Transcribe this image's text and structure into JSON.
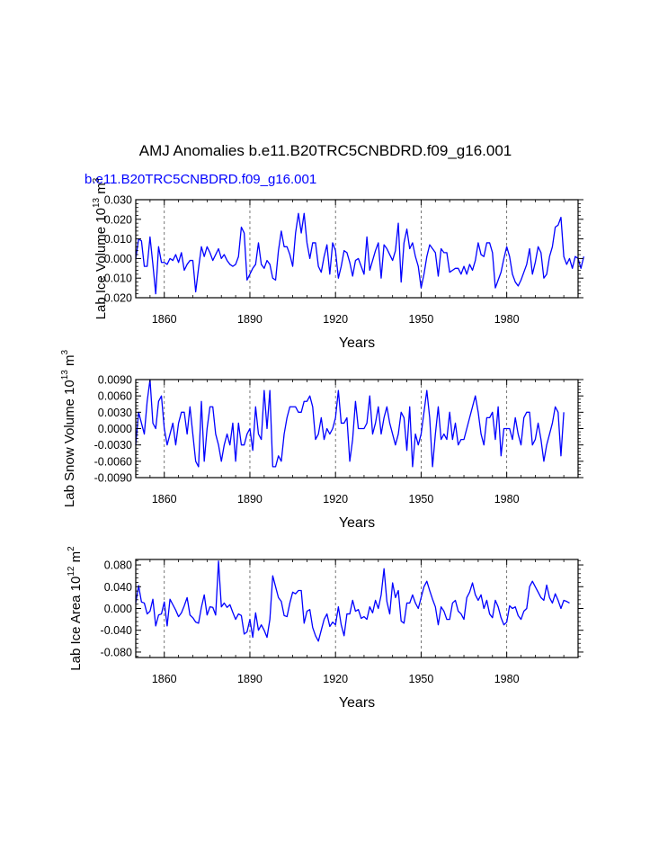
{
  "colors": {
    "series": "#0000ff",
    "axis": "#000000",
    "grid": "#555555"
  },
  "figure": {
    "title": "AMJ Anomalies b.e11.B20TRC5CNBDRD.f09_g16.001",
    "case_label": "b.e11.B20TRC5CNBDRD.f09_g16.001"
  },
  "chart_data": [
    {
      "type": "line",
      "name": "lab-ice-volume",
      "title": "AMJ Anomalies b.e11.B20TRC5CNBDRD.f09_g16.001",
      "series_label": "b.e11.B20TRC5CNBDRD.f09_g16.001",
      "ylabel": {
        "main": "Lab Ice Volume 10",
        "sup1": "13",
        "mid": " m",
        "sup2": "3"
      },
      "xlabel": "Years",
      "xlim": [
        1850,
        2005
      ],
      "ylim": [
        -0.02,
        0.03
      ],
      "x_ticks": [
        1860,
        1890,
        1920,
        1950,
        1980
      ],
      "x_tick_labels": [
        "1860",
        "1890",
        "1920",
        "1950",
        "1980"
      ],
      "y_ticks": [
        -0.02,
        -0.01,
        0.0,
        0.01,
        0.02,
        0.03
      ],
      "y_tick_labels": [
        "-0.020",
        "-0.010",
        "0.000",
        "0.010",
        "0.020",
        "0.030"
      ],
      "grid": "vertical dashed at x ticks",
      "x_start": 1850,
      "values": [
        0.0,
        0.01,
        0.009,
        -0.004,
        -0.004,
        0.011,
        -0.003,
        -0.018,
        0.006,
        -0.002,
        -0.002,
        -0.003,
        0.0,
        -0.001,
        0.002,
        -0.002,
        0.003,
        -0.006,
        -0.003,
        -0.001,
        -0.001,
        -0.017,
        -0.005,
        0.006,
        0.001,
        0.006,
        0.003,
        -0.001,
        0.002,
        0.005,
        0.0,
        0.002,
        -0.001,
        -0.003,
        -0.004,
        -0.003,
        0.001,
        0.016,
        0.013,
        -0.011,
        -0.008,
        -0.005,
        -0.003,
        0.008,
        -0.003,
        -0.005,
        -0.001,
        -0.003,
        -0.01,
        -0.011,
        0.004,
        0.014,
        0.006,
        0.006,
        0.002,
        -0.004,
        0.013,
        0.023,
        0.013,
        0.023,
        0.008,
        0.0,
        0.008,
        0.008,
        -0.004,
        -0.007,
        0.001,
        0.007,
        -0.008,
        0.008,
        0.004,
        -0.01,
        -0.004,
        0.004,
        0.003,
        -0.002,
        -0.009,
        -0.001,
        0.0,
        -0.004,
        -0.008,
        0.011,
        -0.006,
        -0.001,
        0.004,
        0.008,
        -0.01,
        0.007,
        0.005,
        0.002,
        -0.001,
        0.004,
        0.018,
        -0.012,
        0.008,
        0.015,
        0.005,
        0.008,
        0.001,
        -0.004,
        -0.015,
        -0.008,
        0.001,
        0.007,
        0.005,
        0.003,
        -0.009,
        0.005,
        0.003,
        0.003,
        -0.007,
        -0.006,
        -0.005,
        -0.005,
        -0.008,
        -0.004,
        -0.008,
        -0.003,
        -0.006,
        -0.001,
        0.008,
        0.002,
        0.001,
        0.008,
        0.008,
        0.003,
        -0.015,
        -0.011,
        -0.007,
        0.0,
        0.006,
        0.001,
        -0.008,
        -0.012,
        -0.014,
        -0.011,
        -0.007,
        -0.003,
        0.005,
        -0.008,
        -0.002,
        0.006,
        0.003,
        -0.01,
        -0.008,
        0.001,
        0.006,
        0.016,
        0.017,
        0.021,
        0.001,
        -0.003,
        0.0,
        -0.005,
        0.001,
        0.0,
        -0.005,
        0.001
      ]
    },
    {
      "type": "line",
      "name": "lab-snow-volume",
      "ylabel": {
        "main": "Lab Snow Volume 10",
        "sup1": "13",
        "mid": " m",
        "sup2": "3"
      },
      "xlabel": "Years",
      "xlim": [
        1850,
        2005
      ],
      "ylim": [
        -0.009,
        0.009
      ],
      "x_ticks": [
        1860,
        1890,
        1920,
        1950,
        1980
      ],
      "x_tick_labels": [
        "1860",
        "1890",
        "1920",
        "1950",
        "1980"
      ],
      "y_ticks": [
        -0.009,
        -0.006,
        -0.003,
        0.0,
        0.003,
        0.006,
        0.009
      ],
      "y_tick_labels": [
        "-0.0090",
        "-0.0060",
        "-0.0030",
        "0.0000",
        "0.0030",
        "0.0060",
        "0.0090"
      ],
      "grid": "vertical dashed at x ticks",
      "x_start": 1850,
      "values": [
        -0.003,
        0.003,
        0.001,
        -0.001,
        0.005,
        0.009,
        0.001,
        0.0,
        0.005,
        0.006,
        0.0,
        -0.003,
        -0.001,
        0.001,
        -0.003,
        0.001,
        0.003,
        0.003,
        -0.001,
        0.004,
        -0.001,
        -0.006,
        -0.007,
        0.005,
        -0.006,
        0.0,
        0.004,
        0.004,
        -0.001,
        -0.003,
        -0.006,
        -0.003,
        -0.001,
        -0.003,
        0.001,
        -0.006,
        0.001,
        -0.003,
        -0.003,
        -0.001,
        0.0,
        -0.004,
        0.004,
        -0.001,
        -0.002,
        0.007,
        0.0,
        0.007,
        -0.007,
        -0.007,
        -0.005,
        -0.006,
        -0.001,
        0.002,
        0.004,
        0.004,
        0.004,
        0.003,
        0.003,
        0.005,
        0.005,
        0.006,
        0.004,
        -0.002,
        -0.001,
        0.002,
        -0.002,
        0.0,
        -0.001,
        0.0,
        0.002,
        0.007,
        0.001,
        0.001,
        0.002,
        -0.006,
        -0.002,
        0.005,
        0.0,
        0.0,
        0.0,
        0.001,
        0.006,
        -0.001,
        0.001,
        0.004,
        -0.001,
        0.002,
        0.004,
        0.001,
        -0.001,
        -0.003,
        -0.001,
        0.003,
        0.002,
        -0.004,
        0.004,
        -0.007,
        -0.001,
        -0.003,
        -0.001,
        0.003,
        0.007,
        0.002,
        -0.007,
        -0.001,
        0.004,
        -0.002,
        -0.001,
        -0.002,
        0.003,
        -0.002,
        0.001,
        -0.003,
        -0.002,
        -0.002,
        0.0,
        0.002,
        0.004,
        0.006,
        0.003,
        -0.001,
        -0.003,
        0.002,
        0.002,
        0.003,
        -0.002,
        0.004,
        -0.005,
        0.0,
        0.0,
        0.0,
        -0.002,
        0.002,
        -0.001,
        -0.003,
        0.002,
        0.003,
        0.003,
        -0.003,
        -0.002,
        0.001,
        -0.002,
        -0.006,
        -0.003,
        -0.001,
        0.001,
        0.004,
        0.003,
        -0.005,
        0.003
      ]
    },
    {
      "type": "line",
      "name": "lab-ice-area",
      "ylabel": {
        "main": "Lab Ice Area 10",
        "sup1": "12",
        "mid": " m",
        "sup2": "2"
      },
      "xlabel": "Years",
      "xlim": [
        1850,
        2005
      ],
      "ylim": [
        -0.09,
        0.09
      ],
      "x_ticks": [
        1860,
        1890,
        1920,
        1950,
        1980
      ],
      "x_tick_labels": [
        "1860",
        "1890",
        "1920",
        "1950",
        "1980"
      ],
      "y_ticks": [
        -0.08,
        -0.04,
        0.0,
        0.04,
        0.08
      ],
      "y_tick_labels": [
        "-0.080",
        "-0.040",
        "0.000",
        "0.040",
        "0.080"
      ],
      "grid": "vertical dashed at x ticks",
      "x_start": 1850,
      "values": [
        0.01,
        0.042,
        0.012,
        0.01,
        -0.01,
        -0.005,
        0.017,
        -0.032,
        -0.012,
        -0.01,
        0.012,
        -0.032,
        0.017,
        0.007,
        -0.003,
        -0.015,
        -0.008,
        0.005,
        0.02,
        -0.012,
        -0.017,
        -0.025,
        -0.027,
        0.002,
        0.025,
        -0.012,
        0.003,
        0.002,
        -0.012,
        0.087,
        0.003,
        0.01,
        0.002,
        0.007,
        -0.007,
        -0.02,
        -0.01,
        -0.013,
        -0.047,
        -0.043,
        -0.02,
        -0.053,
        -0.008,
        -0.04,
        -0.03,
        -0.04,
        -0.053,
        -0.02,
        0.06,
        0.04,
        0.02,
        0.013,
        -0.013,
        -0.015,
        0.01,
        0.03,
        0.027,
        0.033,
        0.033,
        -0.027,
        -0.005,
        -0.002,
        -0.035,
        -0.05,
        -0.06,
        -0.04,
        -0.02,
        -0.01,
        -0.033,
        -0.025,
        -0.03,
        0.003,
        -0.03,
        -0.05,
        -0.01,
        -0.01,
        0.015,
        -0.005,
        -0.002,
        -0.018,
        -0.015,
        -0.02,
        0.003,
        -0.008,
        0.015,
        0.0,
        0.025,
        0.073,
        0.013,
        -0.01,
        0.047,
        0.02,
        0.033,
        -0.023,
        -0.027,
        0.01,
        0.01,
        0.025,
        0.01,
        0.0,
        0.02,
        0.04,
        0.05,
        0.033,
        0.017,
        0.003,
        -0.03,
        0.003,
        -0.005,
        -0.02,
        -0.02,
        0.01,
        0.015,
        -0.005,
        -0.01,
        -0.02,
        0.02,
        0.03,
        0.047,
        0.025,
        0.015,
        0.025,
        0.0,
        0.015,
        -0.01,
        -0.017,
        0.015,
        0.003,
        -0.017,
        -0.03,
        -0.025,
        0.005,
        0.0,
        0.003,
        -0.013,
        -0.02,
        -0.005,
        0.0,
        0.04,
        0.05,
        0.04,
        0.03,
        0.02,
        0.015,
        0.043,
        0.02,
        0.01,
        0.027,
        0.015,
        0.0,
        0.015,
        0.013,
        0.01
      ]
    }
  ]
}
